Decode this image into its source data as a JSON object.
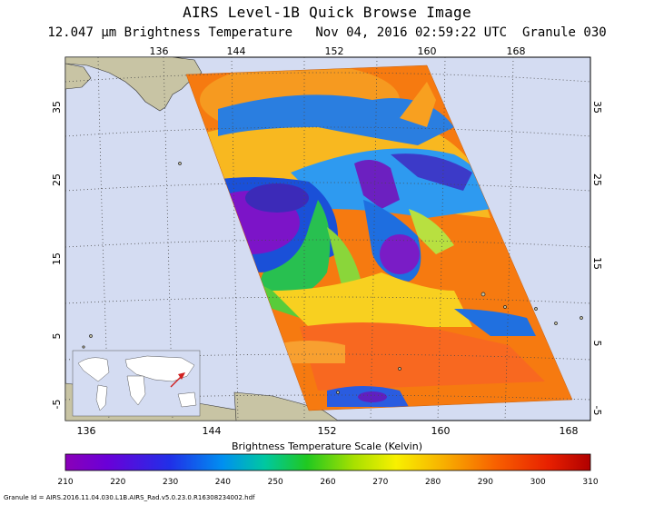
{
  "header": {
    "title": "AIRS Level-1B Quick Browse Image",
    "wavelength": "12.047",
    "wavelength_unit": "μm",
    "band_name": "Brightness Temperature",
    "date": "Nov 04, 2016",
    "time": "02:59:22 UTC",
    "granule": "Granule 030"
  },
  "map": {
    "lon_labels_top": [
      "136",
      "144",
      "152",
      "160",
      "168"
    ],
    "lon_labels_bottom": [
      "136",
      "144",
      "152",
      "160",
      "168"
    ],
    "lat_labels": [
      "35",
      "25",
      "15",
      "5",
      "-5"
    ],
    "colors": {
      "ocean": "#d4dcf2",
      "land": "#c8c4a4",
      "grid": "#4a4a4a"
    }
  },
  "inset": {
    "label": "world-locator",
    "arrow_color": "#d02020"
  },
  "colorbar": {
    "title": "Brightness Temperature Scale (Kelvin)",
    "ticks": [
      "210",
      "220",
      "230",
      "240",
      "250",
      "260",
      "270",
      "280",
      "290",
      "300",
      "310"
    ],
    "min": 210,
    "max": 310
  },
  "footer": {
    "granule_id": "Granule Id = AIRS.2016.11.04.030.L1B.AIRS_Rad.v5.0.23.0.R16308234002.hdf"
  }
}
